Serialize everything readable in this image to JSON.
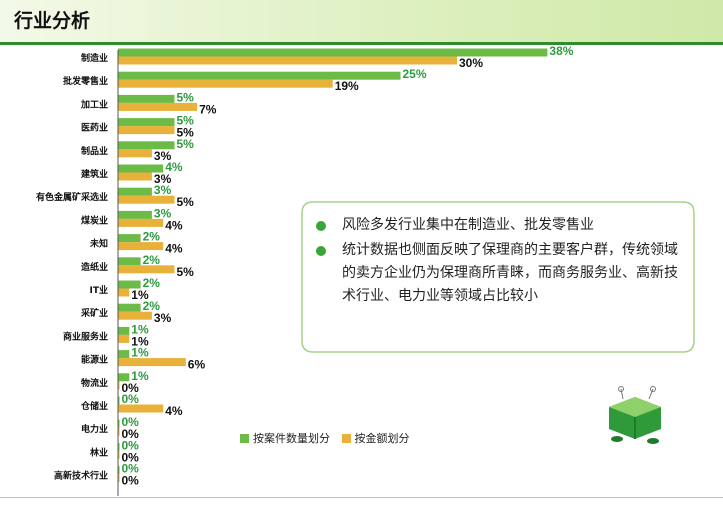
{
  "header": {
    "title": "行业分析"
  },
  "chart_data": {
    "type": "bar",
    "orientation": "horizontal",
    "categories": [
      "制造业",
      "批发零售业",
      "加工业",
      "医药业",
      "制品业",
      "建筑业",
      "有色金属矿采选业",
      "煤炭业",
      "未知",
      "造纸业",
      "IT业",
      "采矿业",
      "商业服务业",
      "能源业",
      "物流业",
      "仓储业",
      "电力业",
      "林业",
      "高新技术行业"
    ],
    "series": [
      {
        "name": "按案件数量划分",
        "color": "#6cbb46",
        "values": [
          38,
          25,
          5,
          5,
          5,
          4,
          3,
          3,
          2,
          2,
          2,
          2,
          1,
          1,
          1,
          0,
          0,
          0,
          0
        ],
        "labels": [
          "38%",
          "25%",
          "5%",
          "5%",
          "5%",
          "4%",
          "3%",
          "3%",
          "2%",
          "2%",
          "2%",
          "2%",
          "1%",
          "1%",
          "1%",
          "0%",
          "0%",
          "0%",
          "0%"
        ]
      },
      {
        "name": "按金额划分",
        "color": "#e8b13a",
        "values": [
          30,
          19,
          7,
          5,
          3,
          3,
          5,
          4,
          4,
          5,
          1,
          3,
          1,
          6,
          0,
          4,
          0,
          0,
          0
        ],
        "labels": [
          "30%",
          "19%",
          "7%",
          "5%",
          "3%",
          "3%",
          "5%",
          "4%",
          "4%",
          "5%",
          "1%",
          "3%",
          "1%",
          "6%",
          "0%",
          "4%",
          "0%",
          "0%",
          "0%"
        ]
      }
    ],
    "unit": "%",
    "legend_position": "bottom-center"
  },
  "notes": [
    "风险多发行业集中在制造业、批发零售业",
    "统计数据也侧面反映了保理商的主要客户群，传统领域的卖方企业仍为保理商所青睐，而商务服务业、高新技术行业、电力业等领域占比较小"
  ],
  "colors": {
    "accent": "#2e8b2e",
    "series_count": "#6cbb46",
    "series_amount": "#e8b13a"
  }
}
